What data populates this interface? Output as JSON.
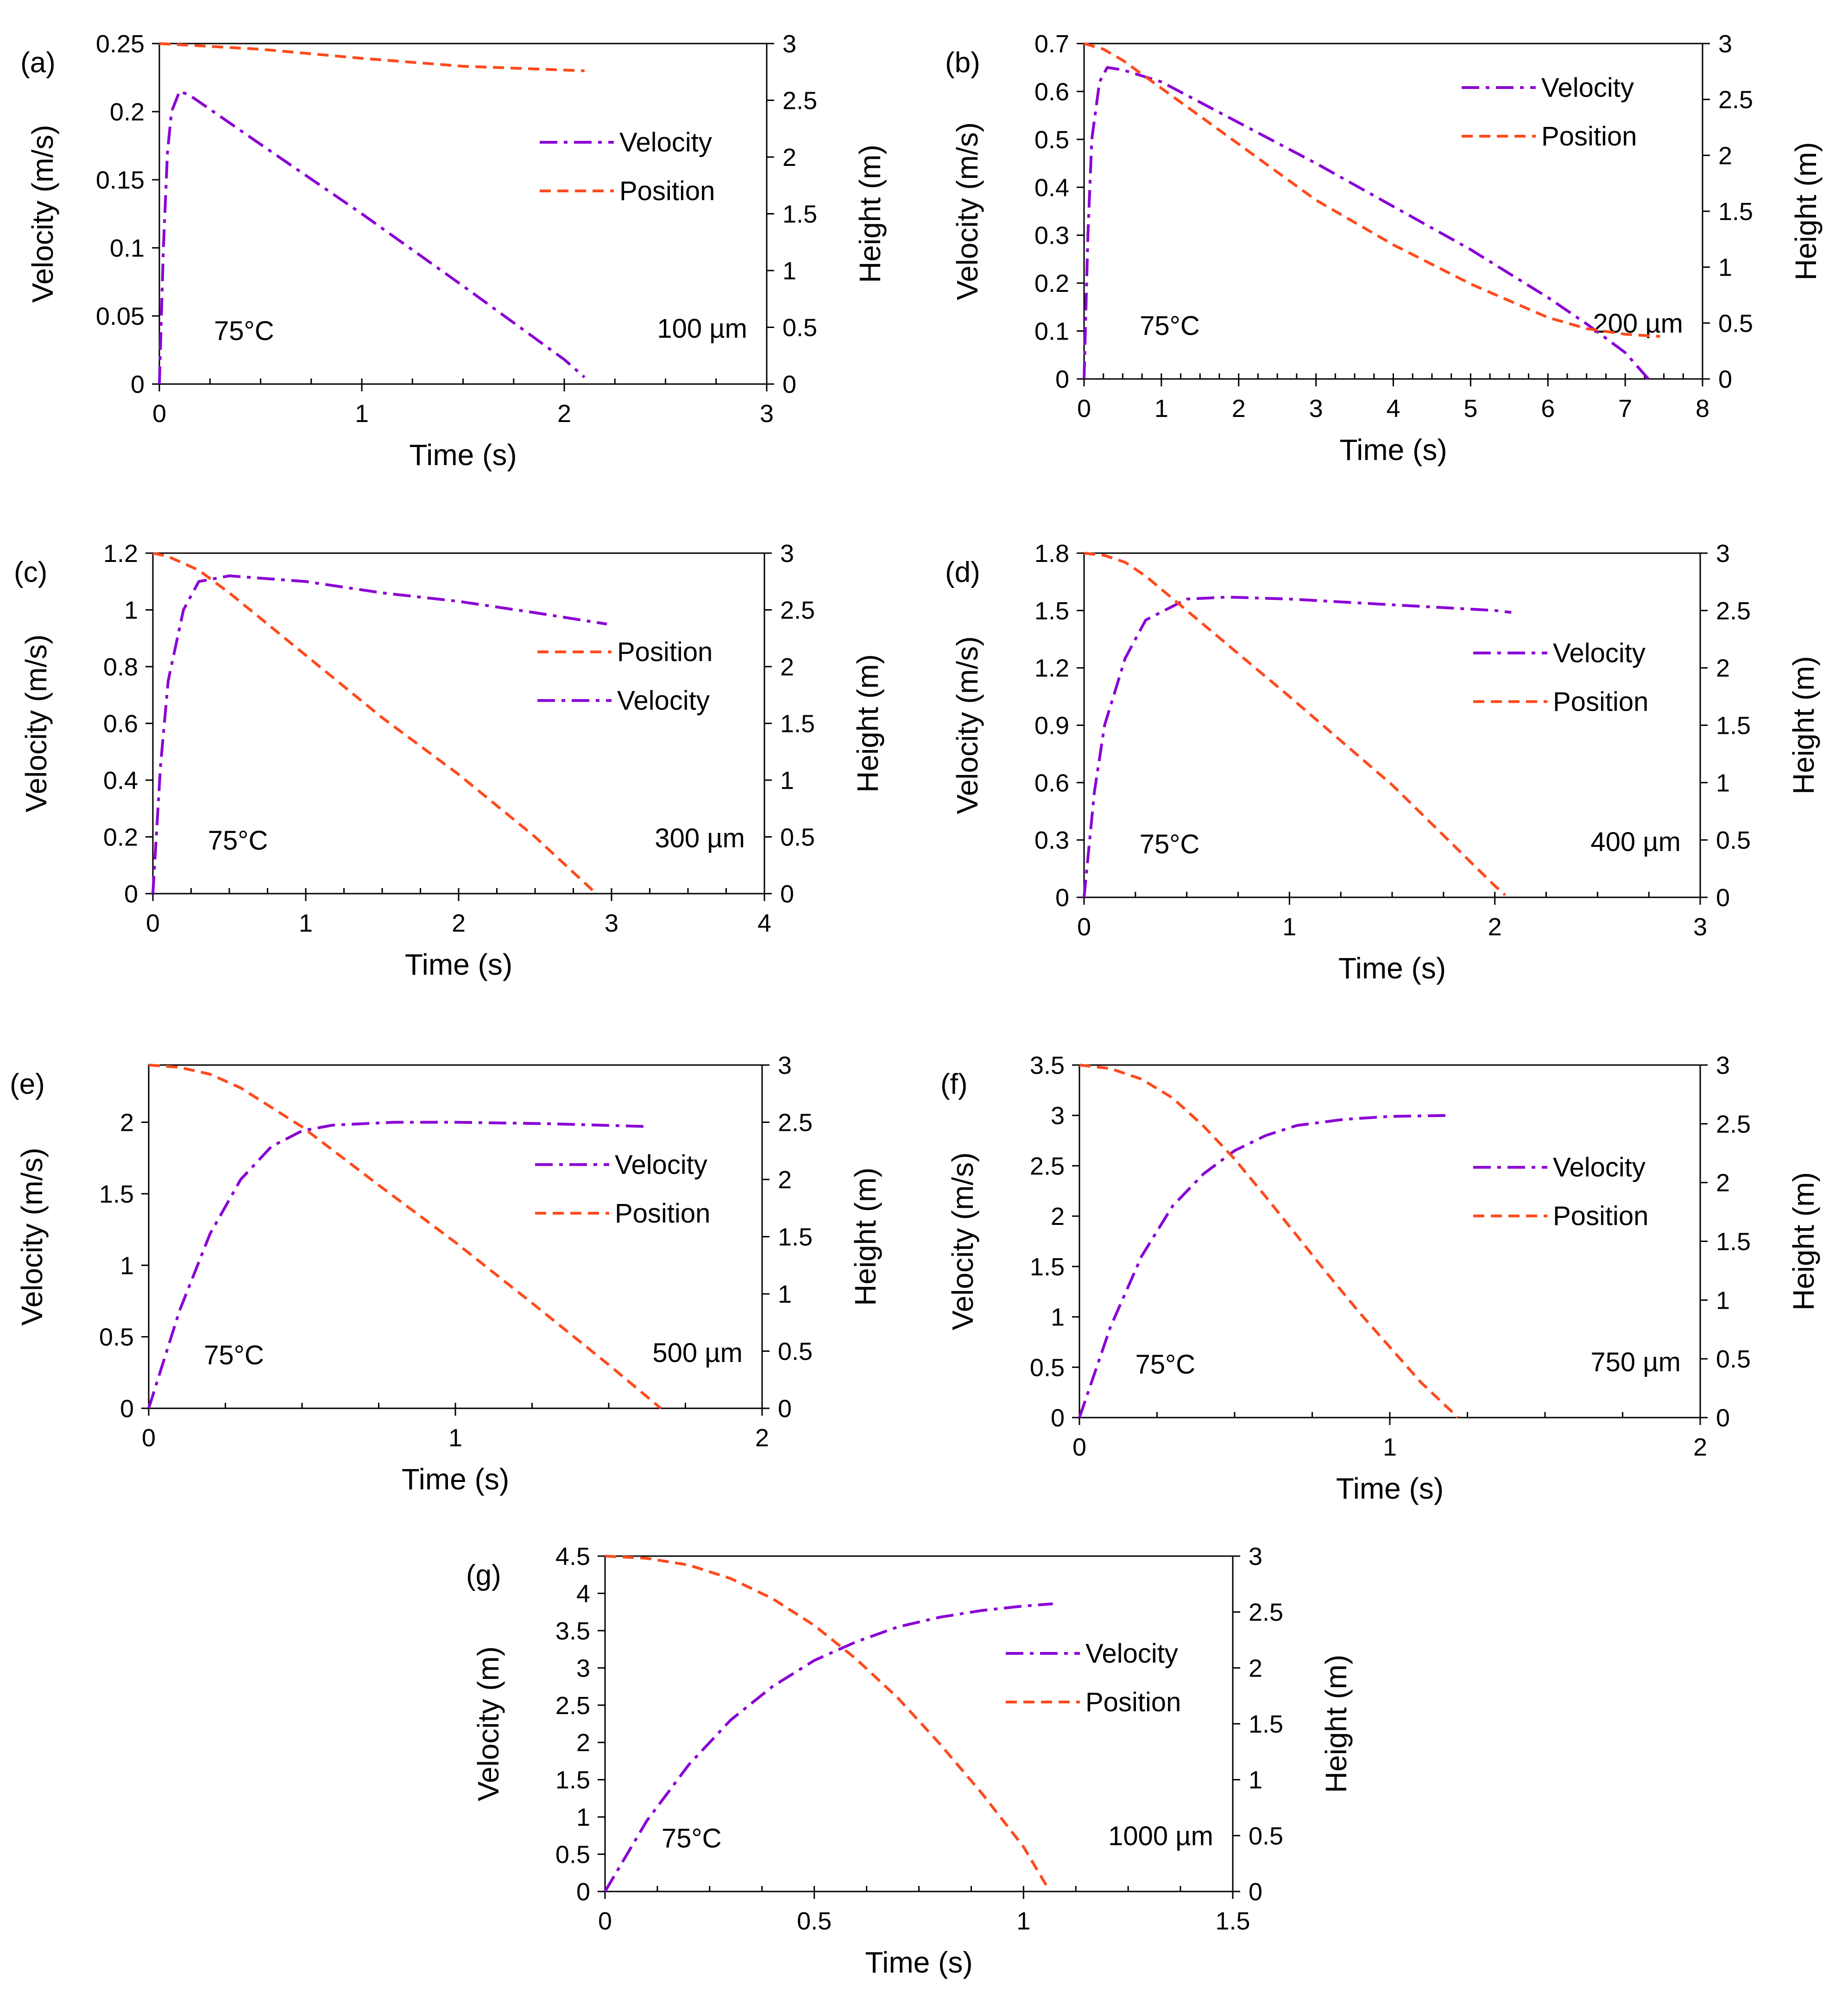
{
  "figure": {
    "line_colors": {
      "velocity": "#8a00d4",
      "position": "#ff4a1c"
    }
  },
  "chart_data": [
    {
      "panel": "(a)",
      "type": "line",
      "xlabel": "Time (s)",
      "ylabel": "Velocity (m/s)",
      "y2label": "Height (m)",
      "xlim": [
        0,
        3
      ],
      "xticks": [
        "0",
        "1",
        "2",
        "3"
      ],
      "xticks_v": [
        0,
        1,
        2,
        3
      ],
      "xminor": 0.25,
      "ylim": [
        0,
        0.25
      ],
      "yticks": [
        "0",
        "0.05",
        "0.1",
        "0.15",
        "0.2",
        "0.25"
      ],
      "yticks_v": [
        0,
        0.05,
        0.1,
        0.15,
        0.2,
        0.25
      ],
      "y2lim": [
        0,
        3
      ],
      "y2ticks": [
        "0",
        "0.5",
        "1",
        "1.5",
        "2",
        "2.5",
        "3"
      ],
      "y2ticks_v": [
        0,
        0.5,
        1,
        1.5,
        2,
        2.5,
        3
      ],
      "temperature": "75°C",
      "diameter": "100 µm",
      "legend_order": [
        "Velocity",
        "Position"
      ],
      "legend_position": "right",
      "velocity": {
        "name": "Velocity",
        "points": [
          [
            0,
            0
          ],
          [
            0.02,
            0.1
          ],
          [
            0.04,
            0.17
          ],
          [
            0.06,
            0.2
          ],
          [
            0.1,
            0.215
          ],
          [
            0.15,
            0.212
          ],
          [
            0.5,
            0.176
          ],
          [
            1.0,
            0.125
          ],
          [
            1.5,
            0.072
          ],
          [
            2.0,
            0.018
          ],
          [
            2.1,
            0.005
          ]
        ]
      },
      "position": {
        "name": "Position",
        "points": [
          [
            0,
            3.0
          ],
          [
            0.5,
            2.95
          ],
          [
            1.0,
            2.87
          ],
          [
            1.5,
            2.8
          ],
          [
            2.1,
            2.76
          ]
        ]
      }
    },
    {
      "panel": "(b)",
      "type": "line",
      "xlabel": "Time (s)",
      "ylabel": "Velocity (m/s)",
      "y2label": "Height (m)",
      "xlim": [
        0,
        8
      ],
      "xticks": [
        "0",
        "1",
        "2",
        "3",
        "4",
        "5",
        "6",
        "7",
        "8"
      ],
      "xticks_v": [
        0,
        1,
        2,
        3,
        4,
        5,
        6,
        7,
        8
      ],
      "xminor": 0.25,
      "ylim": [
        0,
        0.7
      ],
      "yticks": [
        "0",
        "0.1",
        "0.2",
        "0.3",
        "0.4",
        "0.5",
        "0.6",
        "0.7"
      ],
      "yticks_v": [
        0,
        0.1,
        0.2,
        0.3,
        0.4,
        0.5,
        0.6,
        0.7
      ],
      "y2lim": [
        0,
        3
      ],
      "y2ticks": [
        "0",
        "0.5",
        "1",
        "1.5",
        "2",
        "2.5",
        "3"
      ],
      "y2ticks_v": [
        0,
        0.5,
        1,
        1.5,
        2,
        2.5,
        3
      ],
      "temperature": "75°C",
      "diameter": "200 µm",
      "legend_order": [
        "Velocity",
        "Position"
      ],
      "legend_position": "top-right",
      "velocity": {
        "name": "Velocity",
        "points": [
          [
            0,
            0
          ],
          [
            0.05,
            0.3
          ],
          [
            0.1,
            0.5
          ],
          [
            0.2,
            0.62
          ],
          [
            0.3,
            0.65
          ],
          [
            0.5,
            0.645
          ],
          [
            1,
            0.62
          ],
          [
            2,
            0.535
          ],
          [
            3,
            0.45
          ],
          [
            4,
            0.36
          ],
          [
            5,
            0.27
          ],
          [
            6,
            0.17
          ],
          [
            6.5,
            0.115
          ],
          [
            7,
            0.055
          ],
          [
            7.3,
            0.0
          ]
        ]
      },
      "position": {
        "name": "Position",
        "points": [
          [
            0,
            3.0
          ],
          [
            0.25,
            2.95
          ],
          [
            0.5,
            2.85
          ],
          [
            1,
            2.6
          ],
          [
            2,
            2.1
          ],
          [
            3,
            1.6
          ],
          [
            4,
            1.2
          ],
          [
            5,
            0.85
          ],
          [
            6,
            0.55
          ],
          [
            6.5,
            0.45
          ],
          [
            7,
            0.4
          ],
          [
            7.45,
            0.38
          ]
        ]
      }
    },
    {
      "panel": "(c)",
      "type": "line",
      "xlabel": "Time (s)",
      "ylabel": "Velocity (m/s)",
      "y2label": "Height (m)",
      "xlim": [
        0,
        4
      ],
      "xticks": [
        "0",
        "1",
        "2",
        "3",
        "4"
      ],
      "xticks_v": [
        0,
        1,
        2,
        3,
        4
      ],
      "xminor": 0.25,
      "ylim": [
        0,
        1.2
      ],
      "yticks": [
        "0",
        "0.2",
        "0.4",
        "0.6",
        "0.8",
        "1",
        "1.2"
      ],
      "yticks_v": [
        0,
        0.2,
        0.4,
        0.6,
        0.8,
        1,
        1.2
      ],
      "y2lim": [
        0,
        3
      ],
      "y2ticks": [
        "0",
        "0.5",
        "1",
        "1.5",
        "2",
        "2.5",
        "3"
      ],
      "y2ticks_v": [
        0,
        0.5,
        1,
        1.5,
        2,
        2.5,
        3
      ],
      "temperature": "75°C",
      "diameter": "300 µm",
      "legend_order": [
        "Position",
        "Velocity"
      ],
      "legend_position": "right",
      "velocity": {
        "name": "Velocity",
        "points": [
          [
            0,
            0
          ],
          [
            0.05,
            0.45
          ],
          [
            0.1,
            0.75
          ],
          [
            0.2,
            1.0
          ],
          [
            0.3,
            1.1
          ],
          [
            0.5,
            1.12
          ],
          [
            1,
            1.1
          ],
          [
            1.5,
            1.06
          ],
          [
            2,
            1.03
          ],
          [
            2.5,
            0.99
          ],
          [
            2.97,
            0.95
          ]
        ]
      },
      "position": {
        "name": "Position",
        "points": [
          [
            0,
            3.0
          ],
          [
            0.1,
            2.97
          ],
          [
            0.3,
            2.85
          ],
          [
            0.5,
            2.65
          ],
          [
            1,
            2.1
          ],
          [
            1.5,
            1.55
          ],
          [
            2,
            1.05
          ],
          [
            2.5,
            0.5
          ],
          [
            2.9,
            0.0
          ]
        ]
      }
    },
    {
      "panel": "(d)",
      "type": "line",
      "xlabel": "Time (s)",
      "ylabel": "Velocity (m/s)",
      "y2label": "Height (m)",
      "xlim": [
        0,
        3
      ],
      "xticks": [
        "0",
        "1",
        "2",
        "3"
      ],
      "xticks_v": [
        0,
        1,
        2,
        3
      ],
      "xminor": 0.25,
      "ylim": [
        0,
        1.8
      ],
      "yticks": [
        "0",
        "0.3",
        "0.6",
        "0.9",
        "1.2",
        "1.5",
        "1.8"
      ],
      "yticks_v": [
        0,
        0.3,
        0.6,
        0.9,
        1.2,
        1.5,
        1.8
      ],
      "y2lim": [
        0,
        3
      ],
      "y2ticks": [
        "0",
        "0.5",
        "1",
        "1.5",
        "2",
        "2.5",
        "3"
      ],
      "y2ticks_v": [
        0,
        0.5,
        1,
        1.5,
        2,
        2.5,
        3
      ],
      "temperature": "75°C",
      "diameter": "400 µm",
      "legend_order": [
        "Velocity",
        "Position"
      ],
      "legend_position": "right",
      "velocity": {
        "name": "Velocity",
        "points": [
          [
            0,
            0
          ],
          [
            0.05,
            0.55
          ],
          [
            0.1,
            0.9
          ],
          [
            0.2,
            1.25
          ],
          [
            0.3,
            1.45
          ],
          [
            0.5,
            1.56
          ],
          [
            0.7,
            1.57
          ],
          [
            1,
            1.56
          ],
          [
            1.5,
            1.53
          ],
          [
            2,
            1.5
          ],
          [
            2.08,
            1.49
          ]
        ]
      },
      "position": {
        "name": "Position",
        "points": [
          [
            0,
            3.0
          ],
          [
            0.1,
            2.98
          ],
          [
            0.2,
            2.92
          ],
          [
            0.3,
            2.8
          ],
          [
            0.5,
            2.5
          ],
          [
            1,
            1.75
          ],
          [
            1.5,
            0.98
          ],
          [
            2,
            0.1
          ],
          [
            2.05,
            0.02
          ]
        ]
      }
    },
    {
      "panel": "(e)",
      "type": "line",
      "xlabel": "Time (s)",
      "ylabel": "Velocity (m/s)",
      "y2label": "Height (m)",
      "xlim": [
        0,
        2
      ],
      "xticks": [
        "0",
        "1",
        "2"
      ],
      "xticks_v": [
        0,
        1,
        2
      ],
      "xminor": 0.25,
      "ylim": [
        0,
        2.4
      ],
      "yticks": [
        "0",
        "0.5",
        "1",
        "1.5",
        "2"
      ],
      "yticks_v": [
        0,
        0.5,
        1,
        1.5,
        2
      ],
      "y2lim": [
        0,
        3
      ],
      "y2ticks": [
        "0",
        "0.5",
        "1",
        "1.5",
        "2",
        "2.5",
        "3"
      ],
      "y2ticks_v": [
        0,
        0.5,
        1,
        1.5,
        2,
        2.5,
        3
      ],
      "temperature": "75°C",
      "diameter": "500 µm",
      "legend_order": [
        "Velocity",
        "Position"
      ],
      "legend_position": "right",
      "velocity": {
        "name": "Velocity",
        "points": [
          [
            0,
            0
          ],
          [
            0.1,
            0.68
          ],
          [
            0.2,
            1.22
          ],
          [
            0.3,
            1.6
          ],
          [
            0.4,
            1.83
          ],
          [
            0.5,
            1.94
          ],
          [
            0.6,
            1.98
          ],
          [
            0.8,
            2.0
          ],
          [
            1,
            2.0
          ],
          [
            1.3,
            1.99
          ],
          [
            1.63,
            1.97
          ]
        ]
      },
      "position": {
        "name": "Position",
        "points": [
          [
            0,
            3.0
          ],
          [
            0.1,
            2.98
          ],
          [
            0.2,
            2.92
          ],
          [
            0.3,
            2.8
          ],
          [
            0.5,
            2.46
          ],
          [
            0.75,
            1.95
          ],
          [
            1,
            1.45
          ],
          [
            1.25,
            0.92
          ],
          [
            1.5,
            0.38
          ],
          [
            1.67,
            0.0
          ]
        ]
      }
    },
    {
      "panel": "(f)",
      "type": "line",
      "xlabel": "Time (s)",
      "ylabel": "Velocity (m/s)",
      "y2label": "Height (m)",
      "xlim": [
        0,
        2
      ],
      "xticks": [
        "0",
        "1",
        "2"
      ],
      "xticks_v": [
        0,
        1,
        2
      ],
      "xminor": 0.25,
      "ylim": [
        0,
        3.5
      ],
      "yticks": [
        "0",
        "0.5",
        "1",
        "1.5",
        "2",
        "2.5",
        "3",
        "3.5"
      ],
      "yticks_v": [
        0,
        0.5,
        1,
        1.5,
        2,
        2.5,
        3,
        3.5
      ],
      "y2lim": [
        0,
        3
      ],
      "y2ticks": [
        "0",
        "0.5",
        "1",
        "1.5",
        "2",
        "2.5",
        "3"
      ],
      "y2ticks_v": [
        0,
        0.5,
        1,
        1.5,
        2,
        2.5,
        3
      ],
      "temperature": "75°C",
      "diameter": "750 µm",
      "legend_order": [
        "Velocity",
        "Position"
      ],
      "legend_position": "right",
      "velocity": {
        "name": "Velocity",
        "points": [
          [
            0,
            0
          ],
          [
            0.1,
            0.9
          ],
          [
            0.2,
            1.6
          ],
          [
            0.3,
            2.1
          ],
          [
            0.4,
            2.42
          ],
          [
            0.5,
            2.65
          ],
          [
            0.6,
            2.8
          ],
          [
            0.7,
            2.9
          ],
          [
            0.85,
            2.96
          ],
          [
            1,
            2.99
          ],
          [
            1.2,
            3.0
          ]
        ]
      },
      "position": {
        "name": "Position",
        "points": [
          [
            0,
            3.0
          ],
          [
            0.1,
            2.97
          ],
          [
            0.2,
            2.88
          ],
          [
            0.3,
            2.72
          ],
          [
            0.4,
            2.48
          ],
          [
            0.5,
            2.2
          ],
          [
            0.6,
            1.88
          ],
          [
            0.7,
            1.55
          ],
          [
            0.8,
            1.22
          ],
          [
            0.9,
            0.9
          ],
          [
            1,
            0.6
          ],
          [
            1.1,
            0.3
          ],
          [
            1.22,
            0.0
          ]
        ]
      }
    },
    {
      "panel": "(g)",
      "type": "line",
      "xlabel": "Time (s)",
      "ylabel": "Velocity (m)",
      "y2label": "Height (m)",
      "xlim": [
        0,
        1.5
      ],
      "xticks": [
        "0",
        "0.5",
        "1",
        "1.5"
      ],
      "xticks_v": [
        0,
        0.5,
        1,
        1.5
      ],
      "xminor": 0.125,
      "ylim": [
        0,
        4.5
      ],
      "yticks": [
        "0",
        "0.5",
        "1",
        "1.5",
        "2",
        "2.5",
        "3",
        "3.5",
        "4",
        "4.5"
      ],
      "yticks_v": [
        0,
        0.5,
        1,
        1.5,
        2,
        2.5,
        3,
        3.5,
        4,
        4.5
      ],
      "y2lim": [
        0,
        3
      ],
      "y2ticks": [
        "0",
        "0.5",
        "1",
        "1.5",
        "2",
        "2.5",
        "3"
      ],
      "y2ticks_v": [
        0,
        0.5,
        1,
        1.5,
        2,
        2.5,
        3
      ],
      "temperature": "75°C",
      "diameter": "1000 µm",
      "legend_order": [
        "Velocity",
        "Position"
      ],
      "legend_position": "right",
      "velocity": {
        "name": "Velocity",
        "points": [
          [
            0,
            0
          ],
          [
            0.1,
            0.95
          ],
          [
            0.2,
            1.7
          ],
          [
            0.3,
            2.3
          ],
          [
            0.4,
            2.75
          ],
          [
            0.5,
            3.1
          ],
          [
            0.6,
            3.35
          ],
          [
            0.7,
            3.55
          ],
          [
            0.8,
            3.68
          ],
          [
            0.9,
            3.77
          ],
          [
            1.0,
            3.83
          ],
          [
            1.07,
            3.86
          ]
        ]
      },
      "position": {
        "name": "Position",
        "points": [
          [
            0,
            3.0
          ],
          [
            0.1,
            2.98
          ],
          [
            0.2,
            2.92
          ],
          [
            0.3,
            2.8
          ],
          [
            0.4,
            2.62
          ],
          [
            0.5,
            2.38
          ],
          [
            0.6,
            2.08
          ],
          [
            0.7,
            1.73
          ],
          [
            0.8,
            1.32
          ],
          [
            0.9,
            0.88
          ],
          [
            1.0,
            0.4
          ],
          [
            1.06,
            0.02
          ]
        ]
      }
    }
  ]
}
